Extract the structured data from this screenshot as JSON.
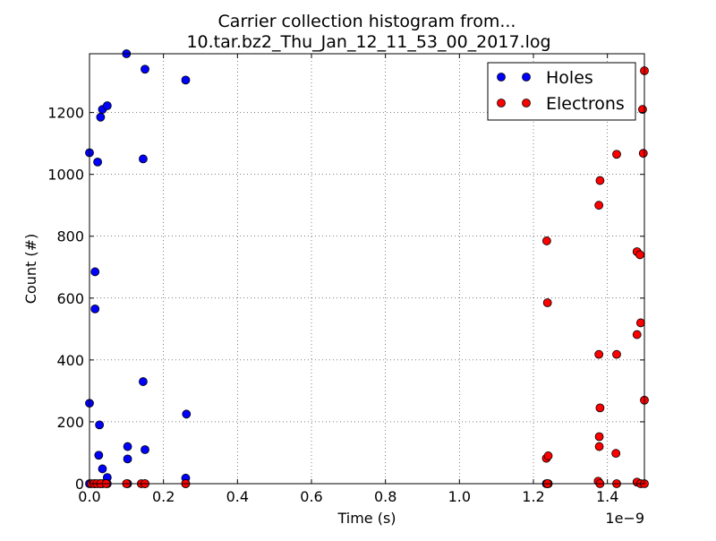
{
  "chart_data": {
    "type": "scatter",
    "title": "Carrier collection histogram from...\n10.tar.bz2_Thu_Jan_12_11_53_00_2017.log",
    "title_lines": [
      "Carrier collection histogram from...",
      "10.tar.bz2_Thu_Jan_12_11_53_00_2017.log"
    ],
    "xlabel": "Time (s)",
    "ylabel": "Count (#)",
    "x_offset_label": "1e−9",
    "xlim": [
      0,
      1.5e-09
    ],
    "ylim": [
      0,
      1390
    ],
    "xticks": [
      0,
      2e-10,
      4e-10,
      6e-10,
      8e-10,
      1e-09,
      1.2e-09,
      1.4e-09
    ],
    "xtick_labels": [
      "0.0",
      "0.2",
      "0.4",
      "0.6",
      "0.8",
      "1.0",
      "1.2",
      "1.4"
    ],
    "yticks": [
      0,
      200,
      400,
      600,
      800,
      1000,
      1200
    ],
    "ytick_labels": [
      "0",
      "200",
      "400",
      "600",
      "800",
      "1000",
      "1200"
    ],
    "grid": true,
    "legend_position": "top-right",
    "series": [
      {
        "name": "Holes",
        "color": "#0000ff",
        "points": [
          [
            0.0,
            1070
          ],
          [
            0.0,
            260
          ],
          [
            0.0,
            0
          ],
          [
            1.5e-11,
            685
          ],
          [
            1.5e-11,
            565
          ],
          [
            1.5e-11,
            0
          ],
          [
            2.2e-11,
            1040
          ],
          [
            2.5e-11,
            92
          ],
          [
            2.7e-11,
            190
          ],
          [
            2.7e-11,
            0
          ],
          [
            3e-11,
            1185
          ],
          [
            3.5e-11,
            1210
          ],
          [
            3.5e-11,
            48
          ],
          [
            3.5e-11,
            0
          ],
          [
            4.8e-11,
            1222
          ],
          [
            4.8e-11,
            20
          ],
          [
            4.8e-11,
            0
          ],
          [
            1e-10,
            1390
          ],
          [
            1.03e-10,
            120
          ],
          [
            1.03e-10,
            80
          ],
          [
            1.03e-10,
            0
          ],
          [
            1.45e-10,
            1050
          ],
          [
            1.45e-10,
            330
          ],
          [
            1.5e-10,
            1340
          ],
          [
            1.5e-10,
            110
          ],
          [
            1.5e-10,
            0
          ],
          [
            2.6e-10,
            1305
          ],
          [
            2.62e-10,
            225
          ],
          [
            2.6e-10,
            18
          ],
          [
            2.6e-10,
            0
          ],
          [
            1.235e-09,
            0
          ],
          [
            1.24e-09,
            0
          ]
        ]
      },
      {
        "name": "Electrons",
        "color": "#ff0000",
        "points": [
          [
            5e-12,
            0
          ],
          [
            1.2e-11,
            0
          ],
          [
            2e-11,
            0
          ],
          [
            3e-11,
            0
          ],
          [
            4.5e-11,
            0
          ],
          [
            1e-10,
            0
          ],
          [
            1.4e-10,
            0
          ],
          [
            1.5e-10,
            0
          ],
          [
            2.6e-10,
            0
          ],
          [
            1.236e-09,
            785
          ],
          [
            1.238e-09,
            585
          ],
          [
            1.235e-09,
            82
          ],
          [
            1.24e-09,
            90
          ],
          [
            1.238e-09,
            0
          ],
          [
            1.377e-09,
            900
          ],
          [
            1.38e-09,
            980
          ],
          [
            1.377e-09,
            418
          ],
          [
            1.38e-09,
            245
          ],
          [
            1.378e-09,
            152
          ],
          [
            1.378e-09,
            120
          ],
          [
            1.375e-09,
            8
          ],
          [
            1.38e-09,
            0
          ],
          [
            1.425e-09,
            1065
          ],
          [
            1.425e-09,
            418
          ],
          [
            1.423e-09,
            98
          ],
          [
            1.425e-09,
            0
          ],
          [
            1.48e-09,
            750
          ],
          [
            1.488e-09,
            740
          ],
          [
            1.48e-09,
            482
          ],
          [
            1.49e-09,
            520
          ],
          [
            1.48e-09,
            5
          ],
          [
            1.49e-09,
            0
          ],
          [
            1.495e-09,
            1210
          ],
          [
            1.497e-09,
            1068
          ],
          [
            1.5e-09,
            1335
          ],
          [
            1.5e-09,
            270
          ],
          [
            1.5e-09,
            0
          ]
        ]
      }
    ]
  }
}
